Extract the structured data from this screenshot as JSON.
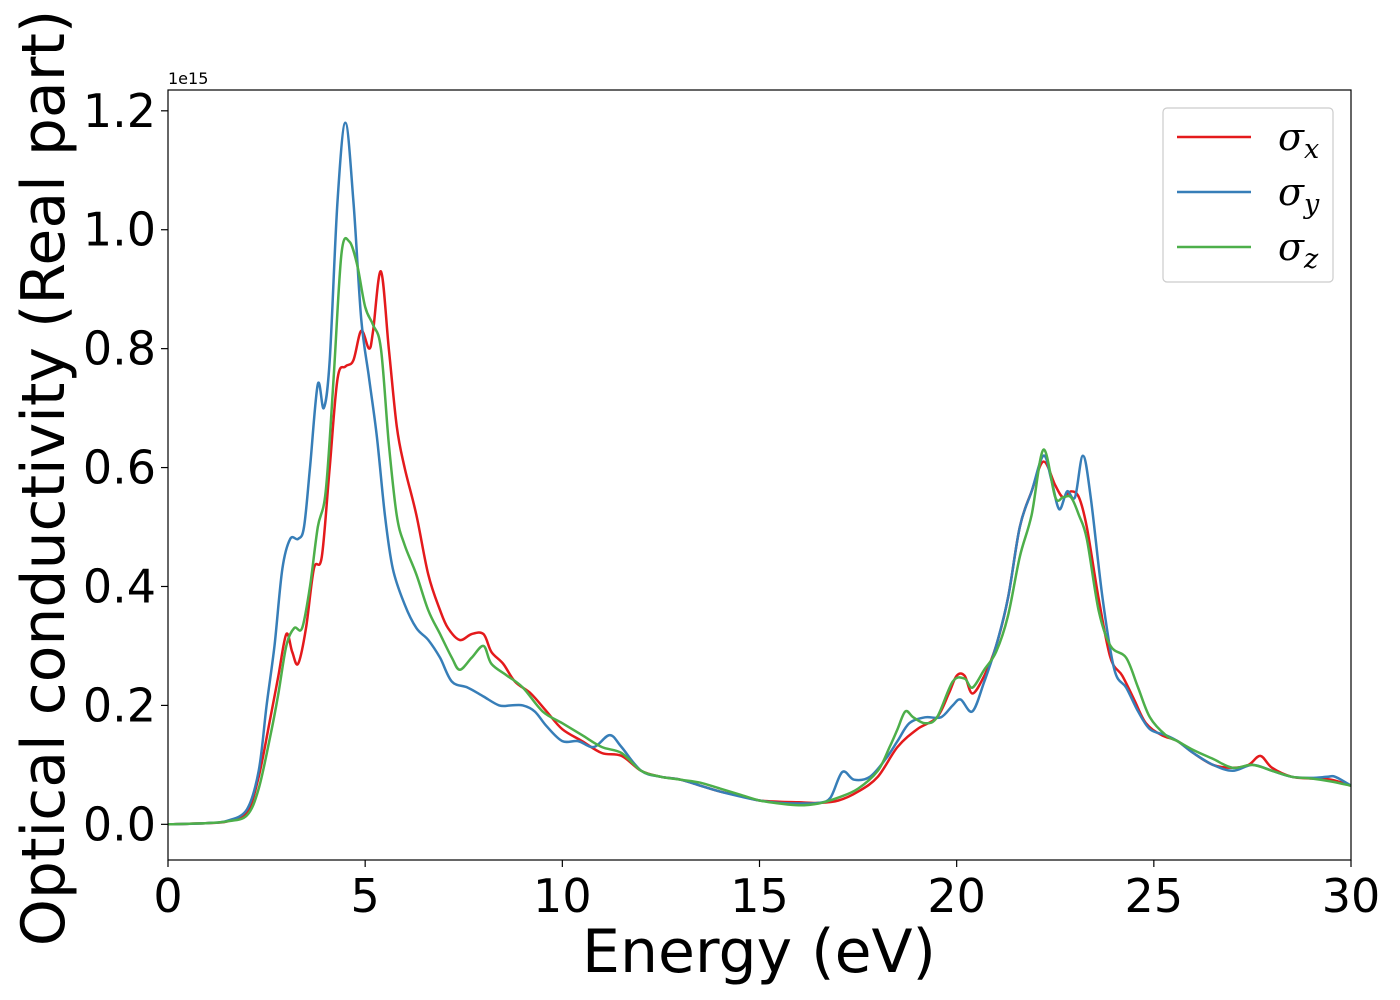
{
  "chart_data": {
    "type": "line",
    "xlabel": "Energy (eV)",
    "ylabel": "Optical conductivity (Real part)",
    "y_offset_label": "1e15",
    "xlim": [
      0,
      30
    ],
    "ylim": [
      -0.06,
      1.235
    ],
    "x_ticks": [
      0,
      5,
      10,
      15,
      20,
      25,
      30
    ],
    "y_ticks": [
      0.0,
      0.2,
      0.4,
      0.6,
      0.8,
      1.0,
      1.2
    ],
    "x_tick_labels": [
      "0",
      "5",
      "10",
      "15",
      "20",
      "25",
      "30"
    ],
    "y_tick_labels": [
      "0.0",
      "0.2",
      "0.4",
      "0.6",
      "0.8",
      "1.0",
      "1.2"
    ],
    "grid": false,
    "legend_position": "top-right",
    "series": [
      {
        "name": "σx",
        "symbol": "σ",
        "subscript": "x",
        "color": "#e41a1c",
        "points": [
          [
            0,
            0
          ],
          [
            1,
            0.002
          ],
          [
            1.5,
            0.005
          ],
          [
            2,
            0.02
          ],
          [
            2.3,
            0.08
          ],
          [
            2.6,
            0.18
          ],
          [
            2.8,
            0.25
          ],
          [
            3.0,
            0.32
          ],
          [
            3.15,
            0.29
          ],
          [
            3.3,
            0.27
          ],
          [
            3.5,
            0.33
          ],
          [
            3.7,
            0.43
          ],
          [
            3.9,
            0.45
          ],
          [
            4.1,
            0.6
          ],
          [
            4.3,
            0.75
          ],
          [
            4.5,
            0.77
          ],
          [
            4.7,
            0.78
          ],
          [
            4.9,
            0.83
          ],
          [
            5.1,
            0.8
          ],
          [
            5.2,
            0.83
          ],
          [
            5.4,
            0.93
          ],
          [
            5.6,
            0.8
          ],
          [
            5.8,
            0.67
          ],
          [
            6.0,
            0.6
          ],
          [
            6.3,
            0.52
          ],
          [
            6.6,
            0.42
          ],
          [
            6.9,
            0.36
          ],
          [
            7.1,
            0.33
          ],
          [
            7.4,
            0.31
          ],
          [
            7.7,
            0.32
          ],
          [
            8.0,
            0.32
          ],
          [
            8.2,
            0.29
          ],
          [
            8.5,
            0.27
          ],
          [
            8.8,
            0.24
          ],
          [
            9.2,
            0.22
          ],
          [
            9.6,
            0.19
          ],
          [
            10.0,
            0.16
          ],
          [
            10.5,
            0.14
          ],
          [
            11.0,
            0.12
          ],
          [
            11.5,
            0.115
          ],
          [
            12.0,
            0.09
          ],
          [
            12.5,
            0.08
          ],
          [
            13.0,
            0.075
          ],
          [
            13.5,
            0.065
          ],
          [
            14.0,
            0.055
          ],
          [
            14.5,
            0.048
          ],
          [
            15.0,
            0.04
          ],
          [
            15.5,
            0.038
          ],
          [
            16.0,
            0.037
          ],
          [
            16.5,
            0.036
          ],
          [
            17.0,
            0.04
          ],
          [
            17.5,
            0.055
          ],
          [
            18.0,
            0.08
          ],
          [
            18.5,
            0.13
          ],
          [
            19.0,
            0.16
          ],
          [
            19.5,
            0.18
          ],
          [
            19.8,
            0.22
          ],
          [
            20.0,
            0.25
          ],
          [
            20.2,
            0.25
          ],
          [
            20.4,
            0.22
          ],
          [
            20.7,
            0.25
          ],
          [
            21.0,
            0.3
          ],
          [
            21.3,
            0.38
          ],
          [
            21.6,
            0.5
          ],
          [
            21.9,
            0.56
          ],
          [
            22.2,
            0.61
          ],
          [
            22.5,
            0.57
          ],
          [
            22.7,
            0.55
          ],
          [
            22.9,
            0.56
          ],
          [
            23.1,
            0.55
          ],
          [
            23.3,
            0.5
          ],
          [
            23.6,
            0.38
          ],
          [
            23.9,
            0.28
          ],
          [
            24.2,
            0.25
          ],
          [
            24.5,
            0.21
          ],
          [
            24.8,
            0.17
          ],
          [
            25.2,
            0.15
          ],
          [
            25.6,
            0.14
          ],
          [
            26.0,
            0.12
          ],
          [
            26.5,
            0.1
          ],
          [
            27.0,
            0.095
          ],
          [
            27.4,
            0.1
          ],
          [
            27.7,
            0.115
          ],
          [
            28.0,
            0.095
          ],
          [
            28.5,
            0.08
          ],
          [
            29.0,
            0.077
          ],
          [
            29.5,
            0.075
          ],
          [
            30.0,
            0.065
          ]
        ]
      },
      {
        "name": "σy",
        "symbol": "σ",
        "subscript": "y",
        "color": "#377eb8",
        "points": [
          [
            0,
            0
          ],
          [
            1,
            0.002
          ],
          [
            1.5,
            0.006
          ],
          [
            2,
            0.025
          ],
          [
            2.3,
            0.09
          ],
          [
            2.5,
            0.2
          ],
          [
            2.7,
            0.3
          ],
          [
            2.9,
            0.43
          ],
          [
            3.1,
            0.48
          ],
          [
            3.3,
            0.48
          ],
          [
            3.45,
            0.5
          ],
          [
            3.6,
            0.6
          ],
          [
            3.8,
            0.74
          ],
          [
            3.95,
            0.7
          ],
          [
            4.1,
            0.78
          ],
          [
            4.3,
            1.05
          ],
          [
            4.5,
            1.18
          ],
          [
            4.7,
            1.05
          ],
          [
            4.9,
            0.85
          ],
          [
            5.1,
            0.75
          ],
          [
            5.3,
            0.65
          ],
          [
            5.5,
            0.52
          ],
          [
            5.7,
            0.43
          ],
          [
            6.0,
            0.37
          ],
          [
            6.3,
            0.33
          ],
          [
            6.6,
            0.31
          ],
          [
            6.9,
            0.28
          ],
          [
            7.2,
            0.24
          ],
          [
            7.6,
            0.23
          ],
          [
            8.0,
            0.215
          ],
          [
            8.4,
            0.2
          ],
          [
            8.7,
            0.2
          ],
          [
            9.0,
            0.2
          ],
          [
            9.3,
            0.19
          ],
          [
            9.6,
            0.165
          ],
          [
            10.0,
            0.14
          ],
          [
            10.4,
            0.14
          ],
          [
            10.8,
            0.13
          ],
          [
            11.2,
            0.15
          ],
          [
            11.5,
            0.13
          ],
          [
            12.0,
            0.09
          ],
          [
            12.5,
            0.08
          ],
          [
            13.0,
            0.075
          ],
          [
            13.5,
            0.065
          ],
          [
            14.0,
            0.055
          ],
          [
            14.5,
            0.047
          ],
          [
            15.0,
            0.04
          ],
          [
            15.5,
            0.036
          ],
          [
            16.0,
            0.035
          ],
          [
            16.5,
            0.036
          ],
          [
            16.8,
            0.045
          ],
          [
            17.1,
            0.088
          ],
          [
            17.4,
            0.075
          ],
          [
            17.8,
            0.08
          ],
          [
            18.2,
            0.11
          ],
          [
            18.5,
            0.14
          ],
          [
            18.8,
            0.17
          ],
          [
            19.2,
            0.18
          ],
          [
            19.6,
            0.18
          ],
          [
            19.9,
            0.2
          ],
          [
            20.1,
            0.21
          ],
          [
            20.4,
            0.19
          ],
          [
            20.7,
            0.24
          ],
          [
            21.0,
            0.3
          ],
          [
            21.3,
            0.38
          ],
          [
            21.6,
            0.5
          ],
          [
            21.9,
            0.56
          ],
          [
            22.2,
            0.62
          ],
          [
            22.4,
            0.58
          ],
          [
            22.6,
            0.53
          ],
          [
            22.8,
            0.56
          ],
          [
            23.0,
            0.55
          ],
          [
            23.2,
            0.62
          ],
          [
            23.4,
            0.55
          ],
          [
            23.7,
            0.38
          ],
          [
            24.0,
            0.26
          ],
          [
            24.3,
            0.23
          ],
          [
            24.6,
            0.19
          ],
          [
            24.9,
            0.16
          ],
          [
            25.3,
            0.15
          ],
          [
            25.6,
            0.14
          ],
          [
            26.0,
            0.12
          ],
          [
            26.5,
            0.1
          ],
          [
            27.0,
            0.09
          ],
          [
            27.5,
            0.1
          ],
          [
            28.0,
            0.09
          ],
          [
            28.5,
            0.08
          ],
          [
            29.0,
            0.078
          ],
          [
            29.4,
            0.08
          ],
          [
            29.6,
            0.08
          ],
          [
            30.0,
            0.065
          ]
        ]
      },
      {
        "name": "σz",
        "symbol": "σ",
        "subscript": "z",
        "color": "#4daf4a",
        "points": [
          [
            0,
            0
          ],
          [
            1,
            0.002
          ],
          [
            1.5,
            0.005
          ],
          [
            2,
            0.015
          ],
          [
            2.3,
            0.06
          ],
          [
            2.6,
            0.15
          ],
          [
            2.8,
            0.22
          ],
          [
            3.0,
            0.3
          ],
          [
            3.2,
            0.33
          ],
          [
            3.4,
            0.33
          ],
          [
            3.6,
            0.4
          ],
          [
            3.8,
            0.5
          ],
          [
            4.0,
            0.56
          ],
          [
            4.2,
            0.75
          ],
          [
            4.4,
            0.96
          ],
          [
            4.6,
            0.98
          ],
          [
            4.8,
            0.94
          ],
          [
            5.0,
            0.87
          ],
          [
            5.2,
            0.84
          ],
          [
            5.4,
            0.8
          ],
          [
            5.6,
            0.64
          ],
          [
            5.8,
            0.52
          ],
          [
            6.0,
            0.47
          ],
          [
            6.3,
            0.42
          ],
          [
            6.6,
            0.36
          ],
          [
            6.9,
            0.32
          ],
          [
            7.2,
            0.28
          ],
          [
            7.4,
            0.26
          ],
          [
            7.7,
            0.28
          ],
          [
            8.0,
            0.3
          ],
          [
            8.2,
            0.27
          ],
          [
            8.6,
            0.25
          ],
          [
            9.0,
            0.23
          ],
          [
            9.5,
            0.19
          ],
          [
            10.0,
            0.17
          ],
          [
            10.5,
            0.15
          ],
          [
            11.0,
            0.13
          ],
          [
            11.5,
            0.12
          ],
          [
            12.0,
            0.09
          ],
          [
            12.5,
            0.08
          ],
          [
            13.0,
            0.075
          ],
          [
            13.5,
            0.07
          ],
          [
            14.0,
            0.06
          ],
          [
            14.5,
            0.05
          ],
          [
            15.0,
            0.04
          ],
          [
            15.5,
            0.035
          ],
          [
            16.0,
            0.032
          ],
          [
            16.5,
            0.035
          ],
          [
            17.0,
            0.045
          ],
          [
            17.5,
            0.06
          ],
          [
            18.0,
            0.09
          ],
          [
            18.3,
            0.13
          ],
          [
            18.5,
            0.16
          ],
          [
            18.7,
            0.19
          ],
          [
            18.9,
            0.18
          ],
          [
            19.2,
            0.17
          ],
          [
            19.5,
            0.18
          ],
          [
            19.9,
            0.24
          ],
          [
            20.2,
            0.245
          ],
          [
            20.4,
            0.23
          ],
          [
            20.7,
            0.26
          ],
          [
            21.0,
            0.29
          ],
          [
            21.3,
            0.35
          ],
          [
            21.6,
            0.45
          ],
          [
            21.9,
            0.52
          ],
          [
            22.2,
            0.63
          ],
          [
            22.5,
            0.55
          ],
          [
            22.7,
            0.55
          ],
          [
            22.9,
            0.55
          ],
          [
            23.1,
            0.52
          ],
          [
            23.3,
            0.48
          ],
          [
            23.6,
            0.36
          ],
          [
            23.9,
            0.3
          ],
          [
            24.3,
            0.28
          ],
          [
            24.6,
            0.23
          ],
          [
            24.9,
            0.18
          ],
          [
            25.3,
            0.15
          ],
          [
            25.6,
            0.14
          ],
          [
            26.0,
            0.125
          ],
          [
            26.5,
            0.11
          ],
          [
            27.0,
            0.095
          ],
          [
            27.5,
            0.1
          ],
          [
            28.0,
            0.09
          ],
          [
            28.5,
            0.08
          ],
          [
            29.0,
            0.077
          ],
          [
            29.5,
            0.072
          ],
          [
            30.0,
            0.065
          ]
        ]
      }
    ]
  }
}
